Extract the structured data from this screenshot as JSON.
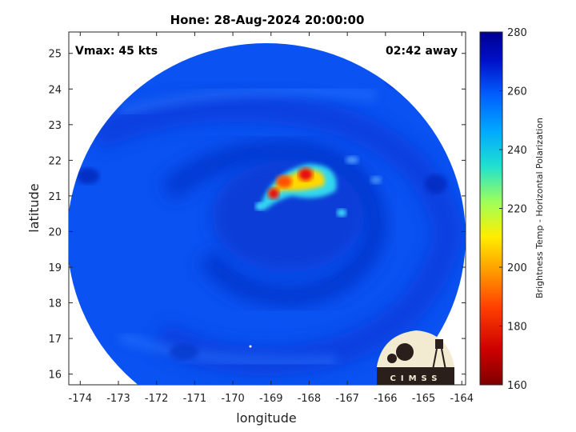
{
  "title": "Hone: 28-Aug-2024 20:00:00",
  "vmax_label": "Vmax: 45 kts",
  "time_away_label": "02:42 away",
  "map": {
    "xlabel": "longitude",
    "ylabel": "latitude",
    "x_ticks": [
      "-174",
      "-173",
      "-172",
      "-171",
      "-170",
      "-169",
      "-168",
      "-167",
      "-166",
      "-165",
      "-164"
    ],
    "y_ticks": [
      "25",
      "24",
      "23",
      "22",
      "21",
      "20",
      "19",
      "18",
      "17",
      "16"
    ],
    "xlim": [
      -174.3,
      -163.9
    ],
    "ylim": [
      15.7,
      25.6
    ],
    "storm_center": {
      "lon": -168.6,
      "lat": 21.1
    }
  },
  "colorbar": {
    "label": "Brightness Temp - Horizontal Polarization",
    "ticks": [
      "280",
      "260",
      "240",
      "220",
      "200",
      "180",
      "160"
    ],
    "range": [
      160,
      280
    ]
  },
  "logo": {
    "text": "CIMSS"
  },
  "colors": {
    "background": "#0a50f0",
    "cold_core": "#d81010",
    "warm": "#ffb000"
  }
}
